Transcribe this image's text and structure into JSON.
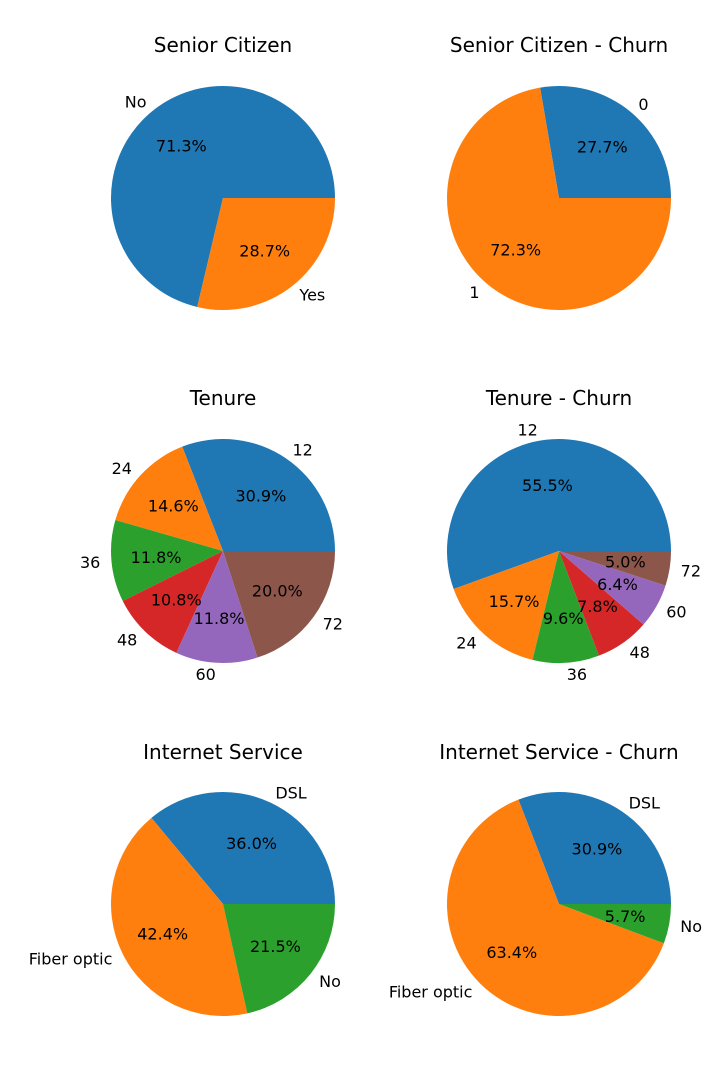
{
  "chart_data": [
    {
      "type": "pie",
      "title": "Senior Citizen",
      "categories": [
        "No",
        "Yes"
      ],
      "values": [
        71.3,
        28.7
      ],
      "colors": [
        "#1f77b4",
        "#ff7f0e"
      ],
      "start_angle_deg": 0,
      "direction": "counterclockwise"
    },
    {
      "type": "pie",
      "title": "Senior Citizen - Churn",
      "categories": [
        "0",
        "1"
      ],
      "values": [
        27.7,
        72.3
      ],
      "colors": [
        "#1f77b4",
        "#ff7f0e"
      ],
      "start_angle_deg": 0,
      "direction": "counterclockwise"
    },
    {
      "type": "pie",
      "title": "Tenure",
      "categories": [
        "12",
        "24",
        "36",
        "48",
        "60",
        "72"
      ],
      "values": [
        30.9,
        14.6,
        11.8,
        10.8,
        11.8,
        20.0
      ],
      "colors": [
        "#1f77b4",
        "#ff7f0e",
        "#2ca02c",
        "#d62728",
        "#9467bd",
        "#8c564b"
      ],
      "start_angle_deg": 0,
      "direction": "counterclockwise"
    },
    {
      "type": "pie",
      "title": "Tenure - Churn",
      "categories": [
        "12",
        "24",
        "36",
        "48",
        "60",
        "72"
      ],
      "values": [
        55.5,
        15.7,
        9.6,
        7.8,
        6.4,
        5.0
      ],
      "colors": [
        "#1f77b4",
        "#ff7f0e",
        "#2ca02c",
        "#d62728",
        "#9467bd",
        "#8c564b"
      ],
      "start_angle_deg": 0,
      "direction": "counterclockwise"
    },
    {
      "type": "pie",
      "title": "Internet Service",
      "categories": [
        "DSL",
        "Fiber optic",
        "No"
      ],
      "values": [
        36.0,
        42.4,
        21.5
      ],
      "colors": [
        "#1f77b4",
        "#ff7f0e",
        "#2ca02c"
      ],
      "start_angle_deg": 0,
      "direction": "counterclockwise"
    },
    {
      "type": "pie",
      "title": "Internet Service - Churn",
      "categories": [
        "DSL",
        "Fiber optic",
        "No"
      ],
      "values": [
        30.9,
        63.4,
        5.7
      ],
      "colors": [
        "#1f77b4",
        "#ff7f0e",
        "#2ca02c"
      ],
      "start_angle_deg": 0,
      "direction": "counterclockwise"
    }
  ]
}
